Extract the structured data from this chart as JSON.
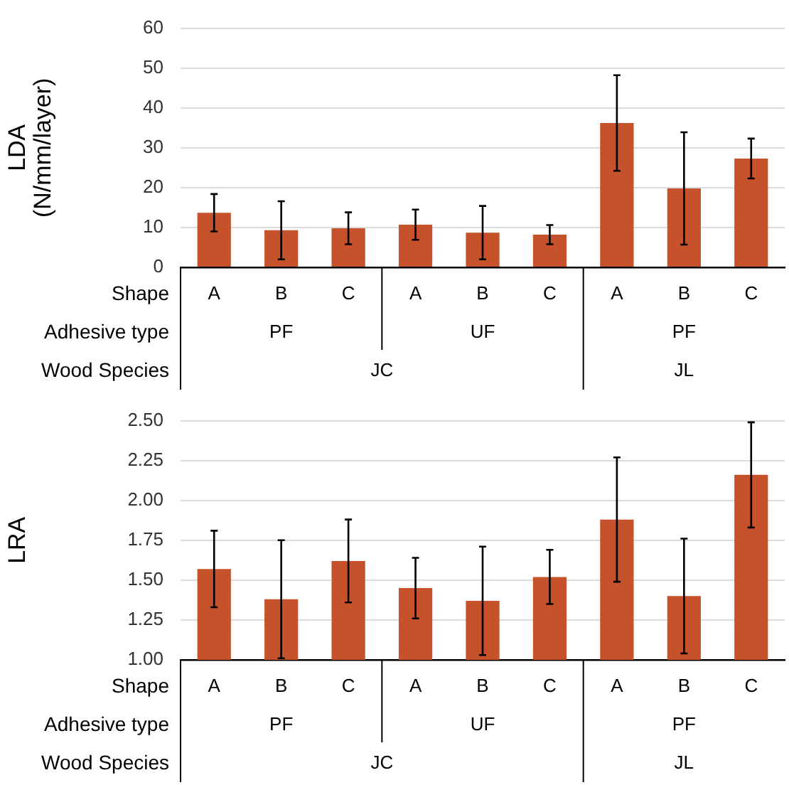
{
  "chart_data": [
    {
      "type": "bar",
      "ylabel": "LDA (N/mm/layer)",
      "categories": [
        "A",
        "B",
        "C",
        "A",
        "B",
        "C",
        "A",
        "B",
        "C"
      ],
      "values": [
        13.7,
        9.3,
        9.8,
        10.7,
        8.7,
        8.2,
        36.2,
        19.8,
        27.3
      ],
      "errors": [
        4.7,
        7.3,
        4,
        3.8,
        6.7,
        2.4,
        12,
        14.1,
        5
      ],
      "color": "#c5522a",
      "ylim": [
        0,
        60
      ],
      "yticks": [
        0,
        10,
        20,
        30,
        40,
        50,
        60
      ],
      "grid": "y",
      "annotations": [
        "Shape",
        "Adhesive type",
        "Wood Species",
        "PF",
        "UF",
        "PF",
        "JC",
        "JL"
      ]
    },
    {
      "type": "bar",
      "ylabel": "LRA",
      "categories": [
        "A",
        "B",
        "C",
        "A",
        "B",
        "C",
        "A",
        "B",
        "C"
      ],
      "values": [
        1.57,
        1.38,
        1.62,
        1.45,
        1.37,
        1.52,
        1.88,
        1.4,
        2.16
      ],
      "errors": [
        0.24,
        0.37,
        0.26,
        0.19,
        0.34,
        0.17,
        0.39,
        0.36,
        0.33
      ],
      "color": "#c5522a",
      "ylim": [
        1,
        2.5
      ],
      "yticks": [
        {
          "value": 1,
          "label": "1.00"
        },
        {
          "value": 1.25,
          "label": "1.25"
        },
        {
          "value": 1.5,
          "label": "1.50"
        },
        {
          "value": 1.75,
          "label": "1.75"
        },
        {
          "value": 2,
          "label": "2.00"
        },
        {
          "value": 2.25,
          "label": "2.25"
        },
        {
          "value": 2.5,
          "label": "2.50"
        }
      ],
      "grid": "y",
      "annotations": [
        "Shape",
        "Adhesive type",
        "Wood Species",
        "PF",
        "UF",
        "PF",
        "JC",
        "JL"
      ]
    }
  ]
}
